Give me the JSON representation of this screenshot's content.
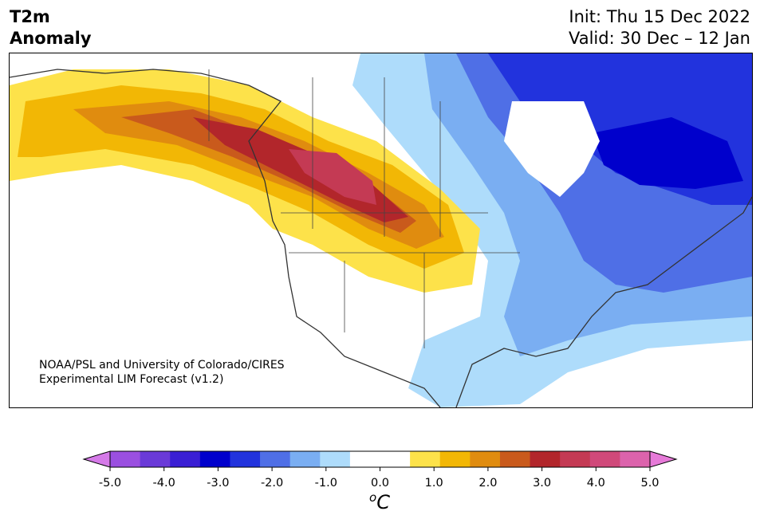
{
  "header": {
    "title_line1": "T2m",
    "title_line2": "Anomaly",
    "init": "Init: Thu 15 Dec 2022",
    "valid": "Valid: 30 Dec – 12 Jan"
  },
  "map": {
    "region": "North America",
    "credit_line1": "NOAA/PSL and University of Colorado/CIRES",
    "credit_line2": "Experimental LIM Forecast (v1.2)"
  },
  "colorbar": {
    "unit_symbol": "C",
    "unit_super": "o",
    "ticks": [
      "-5.0",
      "-4.0",
      "-3.0",
      "-2.0",
      "-1.0",
      "0.0",
      "1.0",
      "2.0",
      "3.0",
      "4.0",
      "5.0"
    ],
    "colors": [
      "#9a4fe0",
      "#6a3ad8",
      "#3a1fd4",
      "#0000cc",
      "#2233dd",
      "#4f6fe6",
      "#7aaef2",
      "#aedcfb",
      "#ffffff",
      "#ffffff",
      "#fde24a",
      "#f2b705",
      "#e08c0f",
      "#c95a1c",
      "#b2262b",
      "#c43a54",
      "#d0497a",
      "#dc63ac"
    ],
    "under_color": "#d57ae8",
    "over_color": "#e67ad8"
  }
}
